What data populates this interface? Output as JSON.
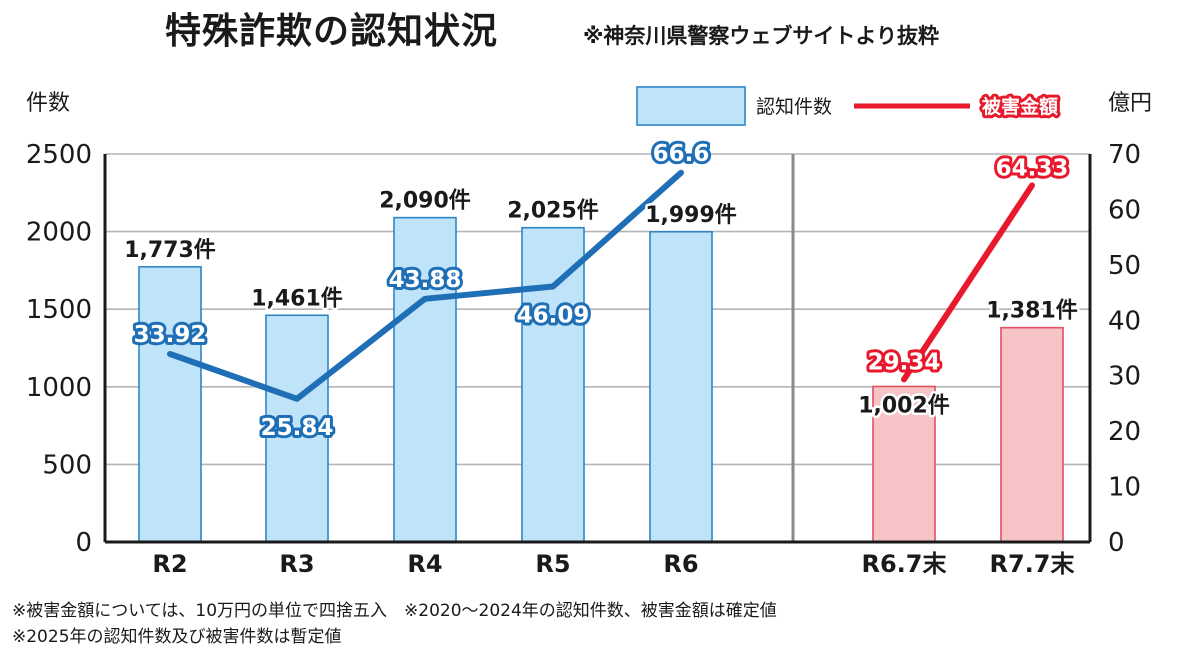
{
  "header": {
    "title": "特殊詐欺の認知状況",
    "source": "※神奈川県警察ウェブサイトより抜粋"
  },
  "notes": {
    "line1": "※被害金額については、10万円の単位で四捨五入　※2020〜2024年の認知件数、被害金額は確定値",
    "line2": "※2025年の認知件数及び被害件数は暫定値"
  },
  "colors": {
    "bar_blue": "#bfe3f8",
    "bar_blue_edge": "#2f86c7",
    "bar_red": "#f6c4c7",
    "bar_red_edge": "#e0525f",
    "line_blue": "#1f6fb6",
    "line_red": "#e8192c",
    "grid": "#b4b4b4",
    "divider": "#8a8a8a"
  },
  "chart_data": {
    "type": "bar+line",
    "categories": [
      "R2",
      "R3",
      "R4",
      "R5",
      "R6",
      "R6.7末",
      "R7.7末"
    ],
    "series": [
      {
        "name": "認知件数",
        "kind": "bar",
        "axis": "left",
        "values": [
          1773,
          1461,
          2090,
          2025,
          1999,
          1002,
          1381
        ],
        "labels": [
          "1,773件",
          "1,461件",
          "2,090件",
          "2,025件",
          "1,999件",
          "1,002件",
          "1,381件"
        ]
      },
      {
        "name": "被害金額",
        "kind": "line",
        "axis": "right",
        "values": [
          33.92,
          25.84,
          43.88,
          46.09,
          66.6,
          29.34,
          64.33
        ],
        "labels": [
          "33.92",
          "25.84",
          "43.88",
          "46.09",
          "66.6",
          "29.34",
          "64.33"
        ],
        "segments": [
          [
            0,
            4
          ],
          [
            5,
            6
          ]
        ]
      }
    ],
    "ylabel_left": "件数",
    "ylabel_right": "億円",
    "ylim_left": [
      0,
      2500
    ],
    "ylim_right": [
      0,
      70
    ],
    "yticks_left": [
      "0",
      "500",
      "1000",
      "1500",
      "2000",
      "2500"
    ],
    "yticks_right": [
      "0",
      "10",
      "20",
      "30",
      "40",
      "50",
      "60",
      "70"
    ],
    "grid": true,
    "legend": {
      "bar_label": "認知件数",
      "line_label": "被害金額",
      "position": "top-right"
    }
  }
}
